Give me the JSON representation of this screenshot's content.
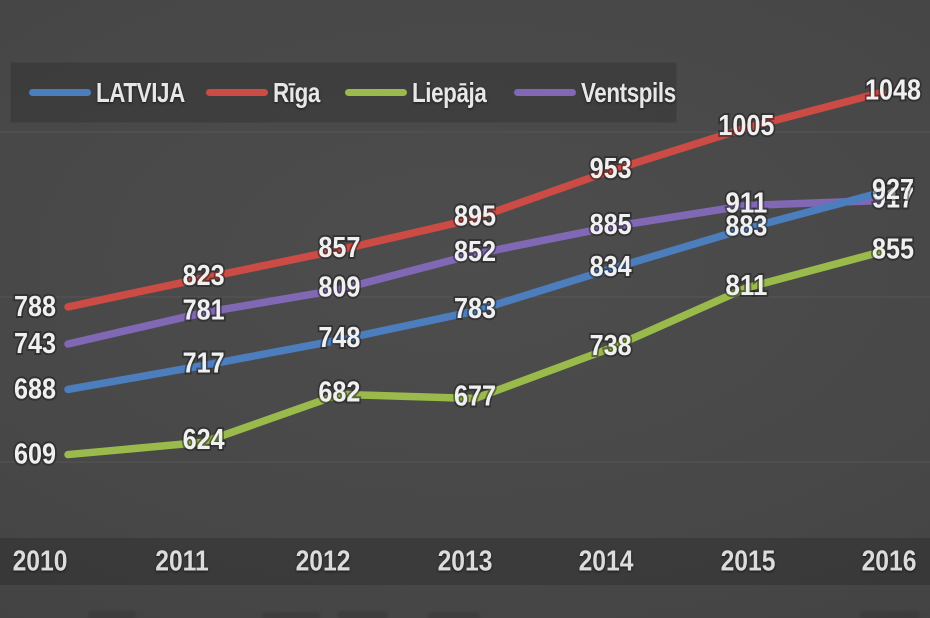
{
  "chart_data": {
    "type": "line",
    "title": "",
    "categories": [
      "2010",
      "2011",
      "2012",
      "2013",
      "2014",
      "2015",
      "2016"
    ],
    "series": [
      {
        "name": "LATVIJA",
        "color": "#4c7dbd",
        "values": [
          688,
          717,
          748,
          783,
          834,
          883,
          927
        ]
      },
      {
        "name": "Rīga",
        "color": "#cd4b45",
        "values": [
          788,
          823,
          857,
          895,
          953,
          1005,
          1048
        ]
      },
      {
        "name": "Liepāja",
        "color": "#9aba4b",
        "values": [
          609,
          624,
          682,
          677,
          738,
          811,
          855
        ]
      },
      {
        "name": "Ventspils",
        "color": "#8068b5",
        "values": [
          743,
          781,
          809,
          852,
          885,
          911,
          917
        ]
      }
    ],
    "xlabel": "",
    "ylabel": "",
    "y_axis_labels_visible": false,
    "gridlines_at": [
      600,
      800,
      1000
    ],
    "implied_y_range": [
      550,
      1100
    ],
    "legend_position": "top-left",
    "data_labels_visible": true
  },
  "theme": {
    "background": "#464646",
    "axis_band": "#3a3a3a",
    "legend_box": "#3c3c3c",
    "gridline": "#5a5a5a",
    "data_label_text": "#f0f0f0",
    "tick_text": "#dcdcdc"
  }
}
